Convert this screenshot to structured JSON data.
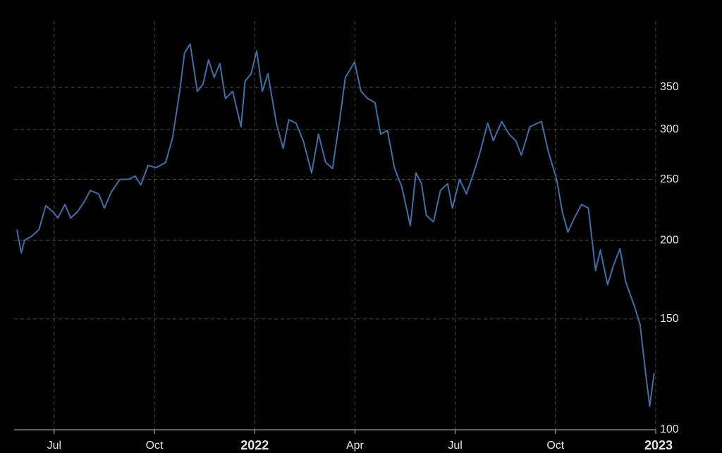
{
  "chart_data": {
    "type": "line",
    "log_y": true,
    "grid": true,
    "y_axis_side": "right",
    "x": [
      2021.407,
      2021.418,
      2021.426,
      2021.444,
      2021.462,
      2021.479,
      2021.497,
      2021.509,
      2021.527,
      2021.541,
      2021.558,
      2021.576,
      2021.59,
      2021.611,
      2021.625,
      2021.643,
      2021.664,
      2021.685,
      2021.702,
      2021.716,
      2021.734,
      2021.755,
      2021.778,
      2021.795,
      2021.813,
      2021.825,
      2021.839,
      2021.857,
      2021.871,
      2021.885,
      2021.899,
      2021.913,
      2021.927,
      2021.945,
      2021.966,
      2021.976,
      2021.991,
      2022.005,
      2022.019,
      2022.033,
      2022.054,
      2022.071,
      2022.085,
      2022.103,
      2022.121,
      2022.142,
      2022.159,
      2022.177,
      2022.194,
      2022.212,
      2022.226,
      2022.249,
      2022.265,
      2022.282,
      2022.3,
      2022.314,
      2022.331,
      2022.349,
      2022.367,
      2022.388,
      2022.402,
      2022.416,
      2022.428,
      2022.446,
      2022.463,
      2022.481,
      2022.493,
      2022.511,
      2022.528,
      2022.546,
      2022.56,
      2022.581,
      2022.595,
      2022.616,
      2022.634,
      2022.651,
      2022.665,
      2022.686,
      2022.715,
      2022.732,
      2022.753,
      2022.767,
      2022.781,
      2022.797,
      2022.815,
      2022.832,
      2022.85,
      2022.862,
      2022.88,
      2022.894,
      2022.911,
      2022.925,
      2022.947,
      2022.961,
      2022.973,
      2022.985,
      2022.996
    ],
    "series": [
      {
        "color": "#3d6fa8",
        "values": [
          208,
          191,
          200,
          203,
          208,
          227,
          222,
          217,
          228,
          217,
          222,
          231,
          240,
          237,
          225,
          239,
          250,
          250,
          253,
          245,
          263,
          261,
          266,
          291,
          345,
          397,
          410,
          345,
          354,
          387,
          363,
          382,
          336,
          345,
          303,
          358,
          368,
          400,
          345,
          368,
          307,
          280,
          311,
          307,
          288,
          256,
          295,
          266,
          260,
          311,
          363,
          384,
          345,
          336,
          331,
          295,
          299,
          260,
          243,
          211,
          256,
          246,
          219,
          214,
          240,
          246,
          225,
          250,
          237,
          256,
          273,
          307,
          288,
          309,
          295,
          288,
          273,
          303,
          309,
          277,
          250,
          222,
          206,
          217,
          228,
          225,
          179,
          193,
          170,
          182,
          194,
          172,
          157,
          147,
          126,
          109,
          123
        ]
      }
    ],
    "xlim": [
      2021.4,
      2023.0
    ],
    "xticks": [
      {
        "value": 2021.5,
        "label": "Jul"
      },
      {
        "value": 2021.75,
        "label": "Oct"
      },
      2022,
      {
        "value": 2022.25,
        "label": "Apr"
      },
      {
        "value": 2022.5,
        "label": "Jul"
      },
      {
        "value": 2022.75,
        "label": "Oct"
      },
      2023
    ],
    "ylim": [
      100,
      446
    ],
    "yticks": [
      100,
      150,
      200,
      250,
      300,
      350
    ]
  }
}
